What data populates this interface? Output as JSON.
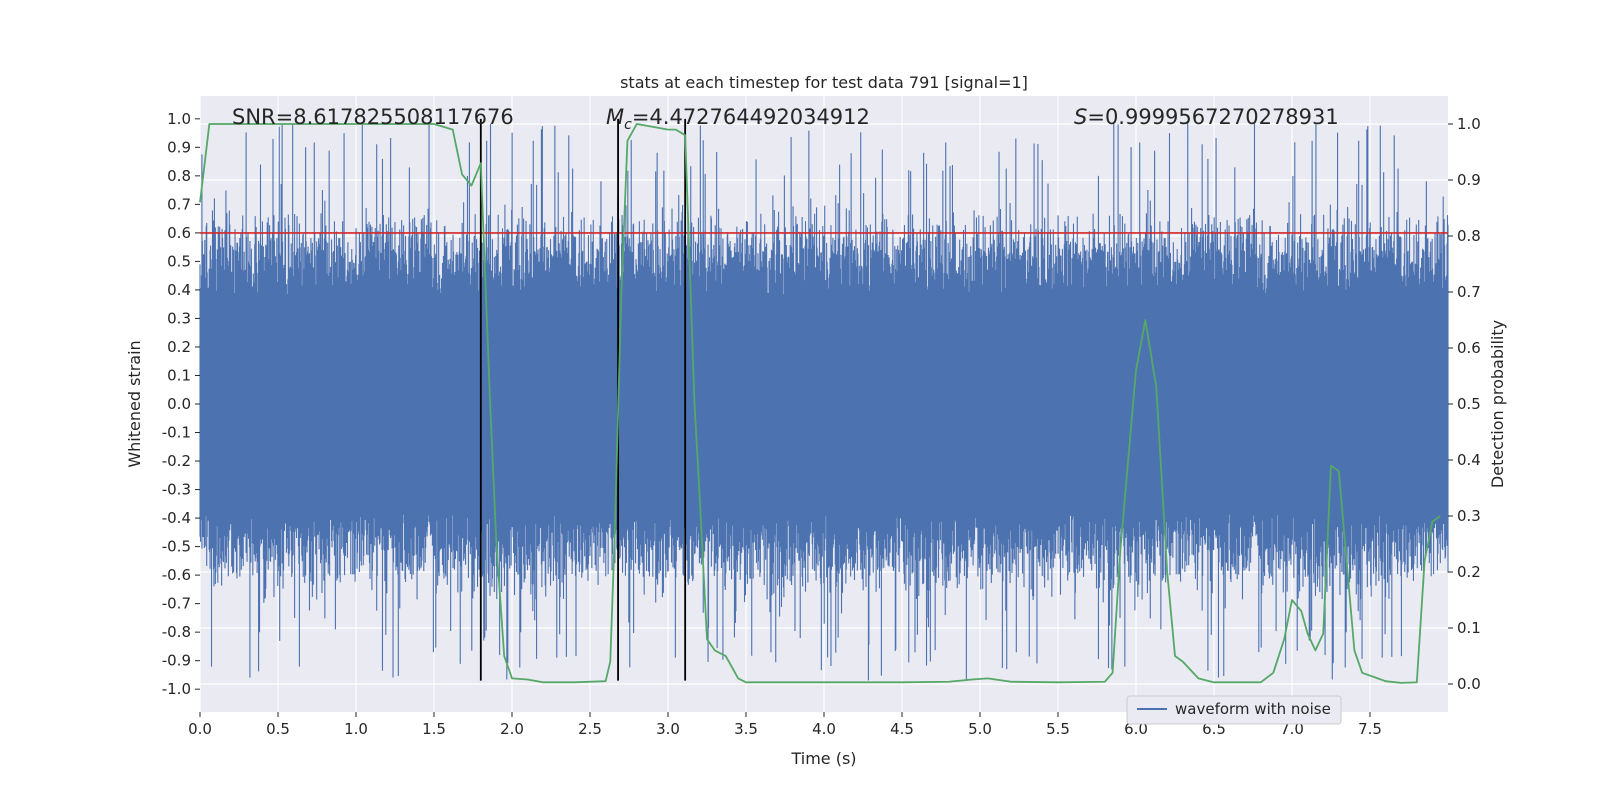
{
  "chart_data": {
    "type": "line",
    "title": "stats at each timestep for test data 791 [signal=1]",
    "xlabel": "Time (s)",
    "ylabel": "Whitened strain",
    "ylabel_right": "Detection probability",
    "xlim": [
      0.0,
      8.0
    ],
    "ylim": [
      -1.08,
      1.08
    ],
    "ylim_right": [
      -0.05,
      1.05
    ],
    "x_ticks": [
      "0.0",
      "0.5",
      "1.0",
      "1.5",
      "2.0",
      "2.5",
      "3.0",
      "3.5",
      "4.0",
      "4.5",
      "5.0",
      "5.5",
      "6.0",
      "6.5",
      "7.0",
      "7.5"
    ],
    "y_ticks": [
      "1.0",
      "0.9",
      "0.8",
      "0.7",
      "0.6",
      "0.5",
      "0.4",
      "0.3",
      "0.2",
      "0.1",
      "0.0",
      "-0.1",
      "-0.2",
      "-0.3",
      "-0.4",
      "-0.5",
      "-0.6",
      "-0.7",
      "-0.8",
      "-0.9",
      "-1.0"
    ],
    "y_ticks_right": [
      "1.0",
      "0.9",
      "0.8",
      "0.7",
      "0.6",
      "0.5",
      "0.4",
      "0.3",
      "0.2",
      "0.1",
      "0.0"
    ],
    "grid": true,
    "annotations": {
      "snr": "SNR=8.617825508117676",
      "mc_symbol": "M",
      "mc_sub": "c",
      "mc_value": "=4.472764492034912",
      "s_symbol": "S",
      "s_value": "=0.9999567270278931"
    },
    "threshold_line": {
      "y": 0.6,
      "color": "#d62728"
    },
    "vertical_lines": [
      1.8,
      2.68,
      3.11
    ],
    "series": [
      {
        "name": "waveform with noise",
        "axis": "left",
        "color": "#4c72b0",
        "style": "noise",
        "core_amplitude": 0.38,
        "typical_peak_max": 0.72,
        "peak_max": 1.0,
        "peak_min": -0.97
      },
      {
        "name": "Detection probability",
        "axis": "right",
        "color": "#55a868",
        "x": [
          0.0,
          0.06,
          0.2,
          0.5,
          1.0,
          1.5,
          1.62,
          1.68,
          1.74,
          1.8,
          1.86,
          1.9,
          1.95,
          2.0,
          2.1,
          2.2,
          2.4,
          2.6,
          2.63,
          2.66,
          2.7,
          2.74,
          2.8,
          2.9,
          3.0,
          3.05,
          3.11,
          3.17,
          3.2,
          3.25,
          3.3,
          3.37,
          3.45,
          3.5,
          3.6,
          4.0,
          4.5,
          4.8,
          4.95,
          5.05,
          5.2,
          5.5,
          5.8,
          5.85,
          5.9,
          5.95,
          6.0,
          6.06,
          6.13,
          6.2,
          6.25,
          6.3,
          6.4,
          6.5,
          6.8,
          6.88,
          6.95,
          7.0,
          7.06,
          7.1,
          7.15,
          7.2,
          7.25,
          7.3,
          7.35,
          7.4,
          7.45,
          7.55,
          7.6,
          7.7,
          7.8,
          7.85,
          7.9,
          7.95
        ],
        "y": [
          0.86,
          1.0,
          1.0,
          1.0,
          1.0,
          1.0,
          0.99,
          0.91,
          0.89,
          0.93,
          0.5,
          0.25,
          0.05,
          0.01,
          0.008,
          0.003,
          0.003,
          0.005,
          0.04,
          0.28,
          0.69,
          0.97,
          1.0,
          0.995,
          0.99,
          0.99,
          0.98,
          0.5,
          0.35,
          0.08,
          0.06,
          0.05,
          0.01,
          0.003,
          0.003,
          0.003,
          0.003,
          0.004,
          0.008,
          0.01,
          0.004,
          0.003,
          0.004,
          0.02,
          0.24,
          0.4,
          0.56,
          0.65,
          0.53,
          0.2,
          0.05,
          0.04,
          0.01,
          0.003,
          0.003,
          0.02,
          0.08,
          0.15,
          0.13,
          0.09,
          0.06,
          0.09,
          0.39,
          0.38,
          0.22,
          0.06,
          0.02,
          0.01,
          0.005,
          0.002,
          0.003,
          0.22,
          0.29,
          0.3
        ]
      }
    ],
    "legend": {
      "position": "lower-right",
      "entries": [
        "waveform with noise"
      ]
    }
  }
}
